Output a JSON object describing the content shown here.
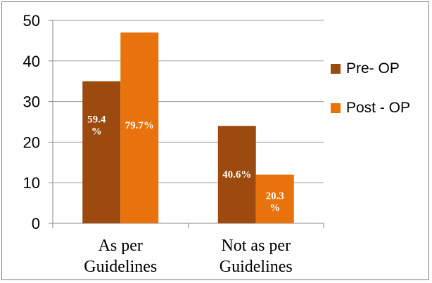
{
  "chart_data": {
    "type": "bar",
    "categories": [
      [
        "As per",
        "Guidelines"
      ],
      [
        "Not as per",
        "Guidelines"
      ]
    ],
    "series": [
      {
        "name": "Pre- OP",
        "color": "#9C4A0E",
        "values": [
          35,
          24
        ],
        "labels": [
          [
            "59.4",
            "%"
          ],
          [
            "40.6%"
          ]
        ]
      },
      {
        "name": "Post - OP",
        "color": "#E8720C",
        "values": [
          47,
          12
        ],
        "labels": [
          [
            "79.7%"
          ],
          [
            "20.3",
            "%"
          ]
        ]
      }
    ],
    "ylim": [
      0,
      50
    ],
    "yticks": [
      0,
      10,
      20,
      30,
      40,
      50
    ],
    "grid": true,
    "legend_position": "right"
  }
}
